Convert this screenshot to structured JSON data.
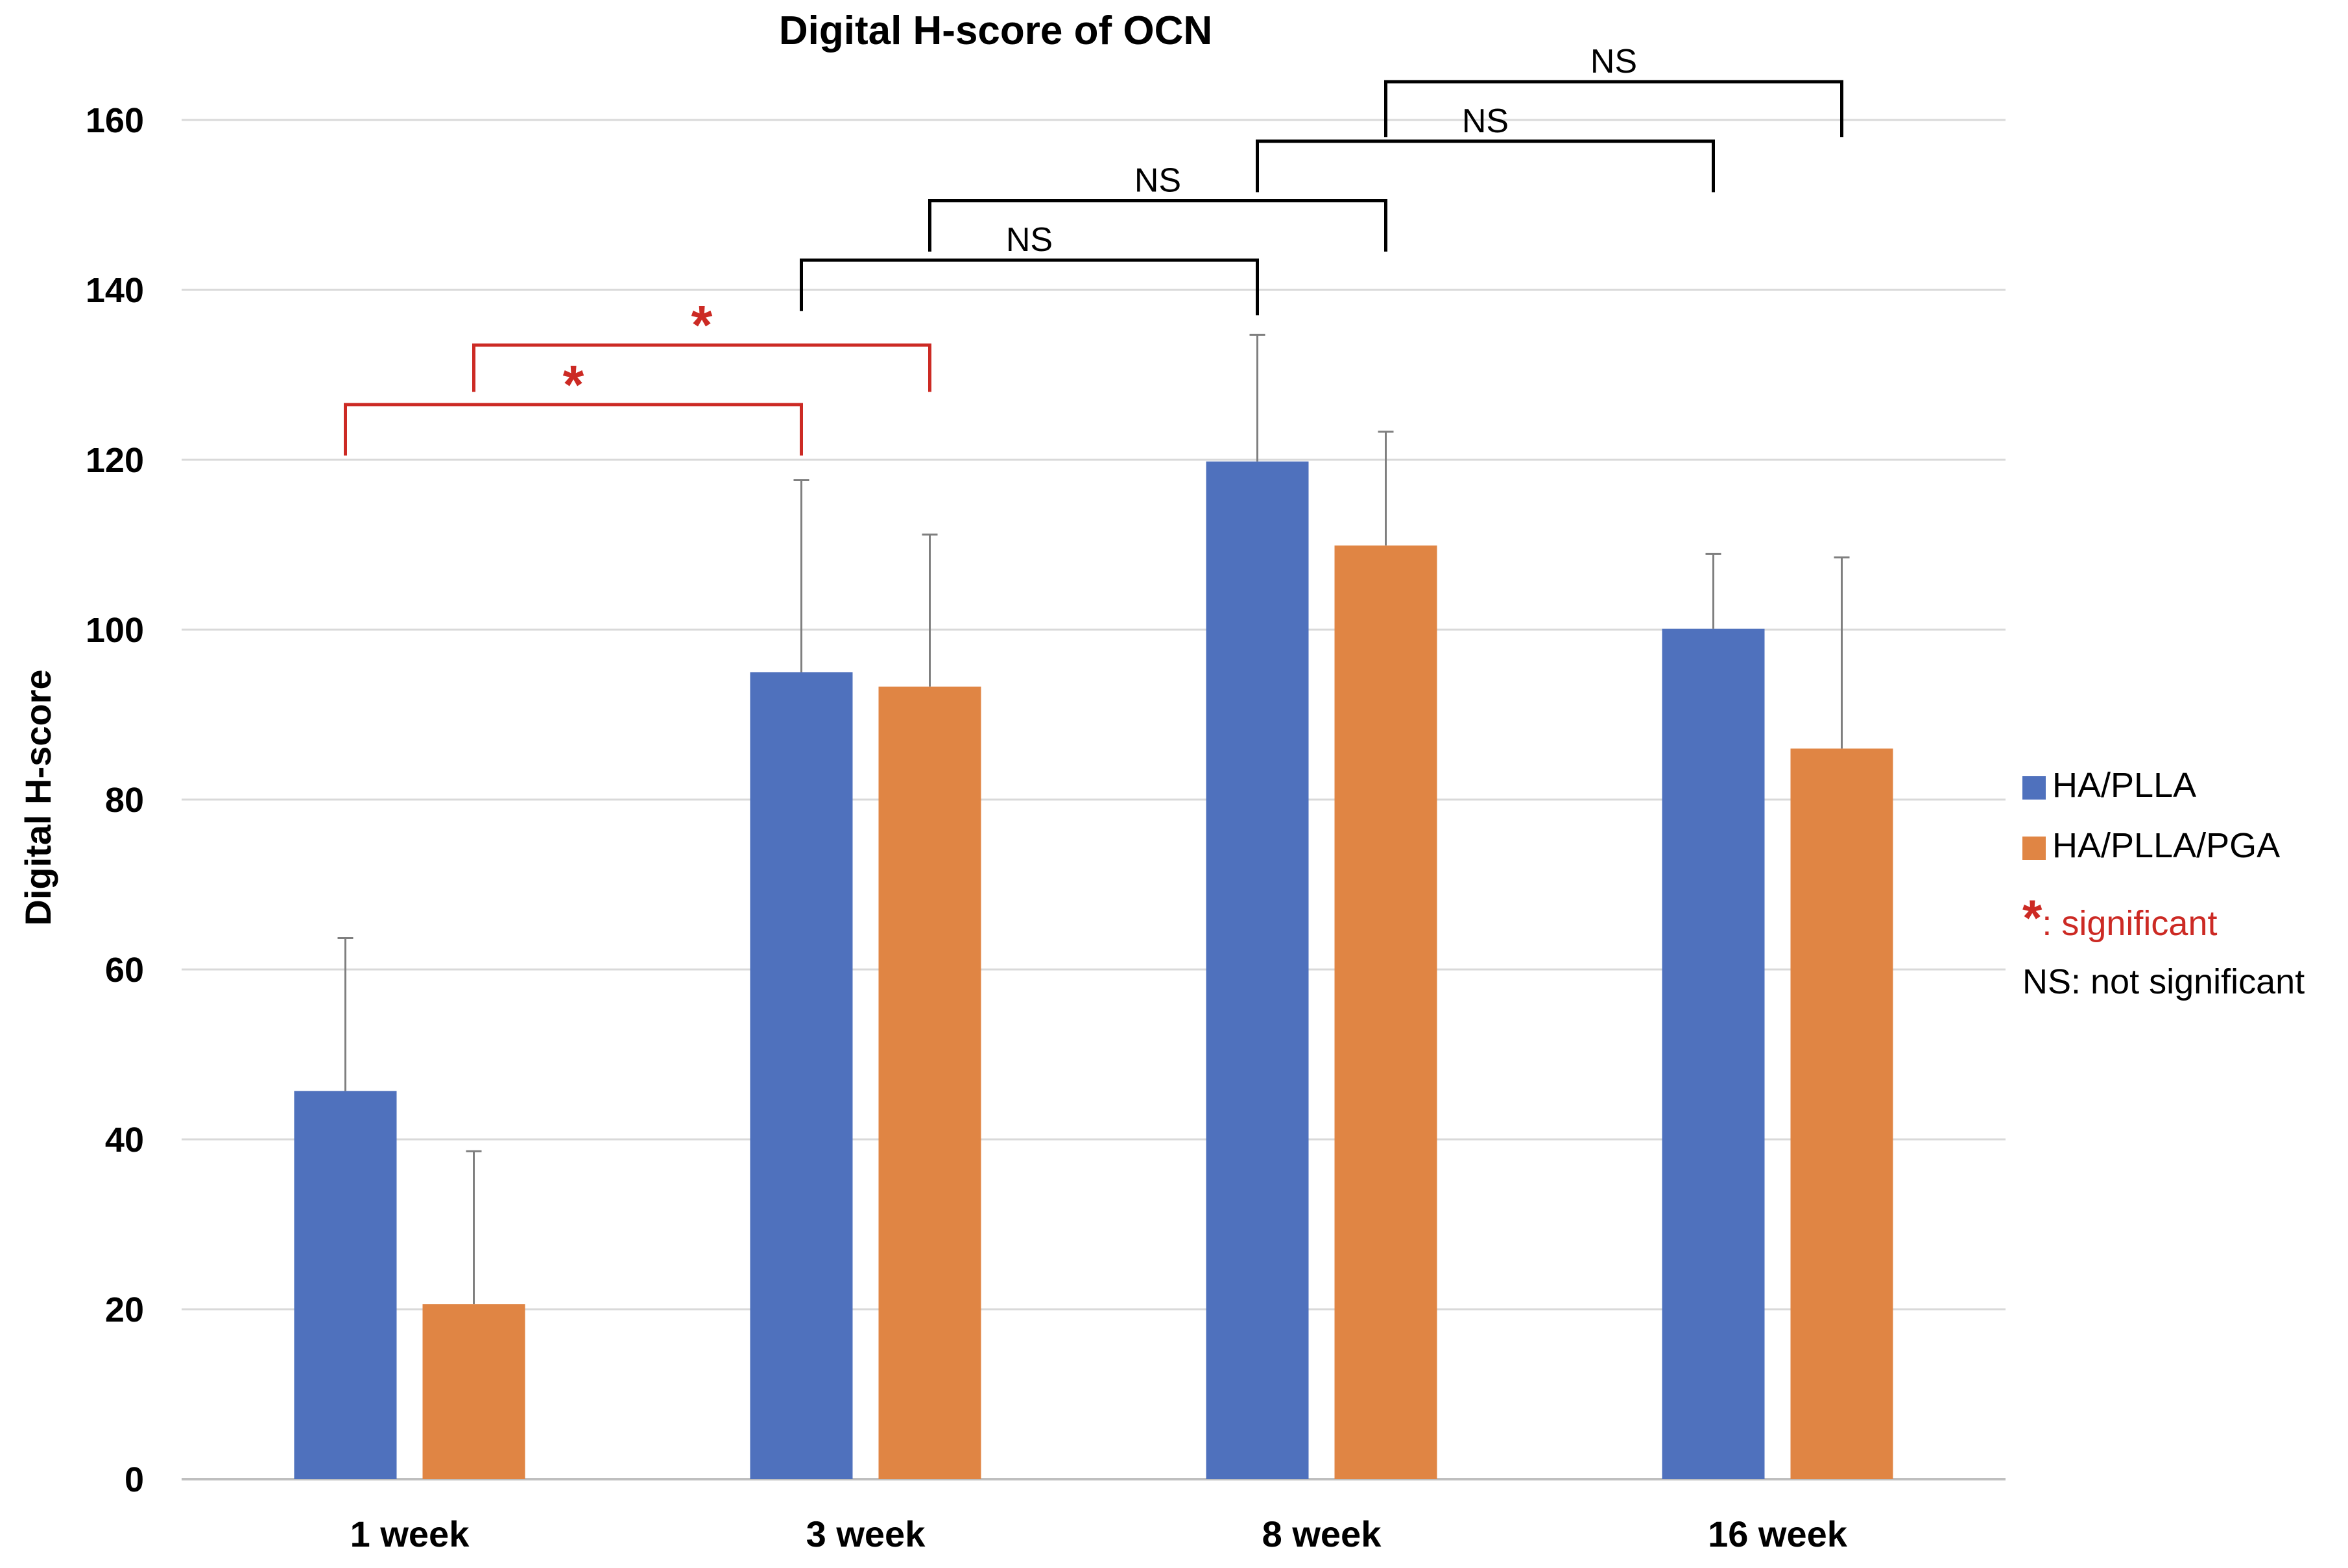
{
  "chart_data": {
    "type": "bar",
    "title": "Digital H-score of OCN",
    "xlabel": "",
    "ylabel": "Digital H-score",
    "ylim": [
      0,
      160
    ],
    "yticks": [
      0,
      20,
      40,
      60,
      80,
      100,
      120,
      140,
      160
    ],
    "ytick_labels": [
      "0",
      "20",
      "40",
      "60",
      "80",
      "100",
      "120",
      "140",
      "160"
    ],
    "grid": true,
    "legend_position": "right",
    "categories": [
      "1 week",
      "3 week",
      "8 week",
      "16 week"
    ],
    "series": [
      {
        "name": "HA/PLLA",
        "color": "#4f71bd",
        "values": [
          45.7,
          95.0,
          119.8,
          100.1
        ],
        "errors": [
          18.0,
          22.6,
          14.9,
          8.8
        ]
      },
      {
        "name": "HA/PLLA/PGA",
        "color": "#e08544",
        "values": [
          20.6,
          93.3,
          109.9,
          86.0
        ],
        "errors": [
          18.0,
          17.9,
          13.4,
          22.5
        ]
      }
    ],
    "significance": [
      {
        "from": [
          0,
          0
        ],
        "to": [
          1,
          0
        ],
        "y_top": 126.5,
        "y_left_end": 120.5,
        "y_right_end": 120.5,
        "label": "*",
        "color": "#cc2a24"
      },
      {
        "from": [
          0,
          1
        ],
        "to": [
          1,
          1
        ],
        "y_top": 133.5,
        "y_left_end": 128.0,
        "y_right_end": 128.0,
        "label": "*",
        "color": "#cc2a24"
      },
      {
        "from": [
          1,
          0
        ],
        "to": [
          2,
          0
        ],
        "y_top": 143.5,
        "y_left_end": 137.5,
        "y_right_end": 137.0,
        "label": "NS",
        "color": "#000000"
      },
      {
        "from": [
          1,
          1
        ],
        "to": [
          2,
          1
        ],
        "y_top": 150.5,
        "y_left_end": 144.5,
        "y_right_end": 144.5,
        "label": "NS",
        "color": "#000000"
      },
      {
        "from": [
          2,
          0
        ],
        "to": [
          3,
          0
        ],
        "y_top": 157.5,
        "y_left_end": 151.5,
        "y_right_end": 151.5,
        "label": "NS",
        "color": "#000000"
      },
      {
        "from": [
          2,
          1
        ],
        "to": [
          3,
          1
        ],
        "y_top": 164.5,
        "y_left_end": 158.0,
        "y_right_end": 158.0,
        "label": "NS",
        "color": "#000000"
      }
    ],
    "legend_notes": [
      {
        "symbol": "*",
        "text": ": significant",
        "color": "#cc2a24"
      },
      {
        "symbol": "",
        "text": "NS: not significant",
        "color": "#000000"
      }
    ],
    "colors": {
      "grid": "#d9d9d9",
      "axis": "#bfbfbf",
      "error_bar": "#7f7f7f",
      "text": "#000000"
    }
  }
}
